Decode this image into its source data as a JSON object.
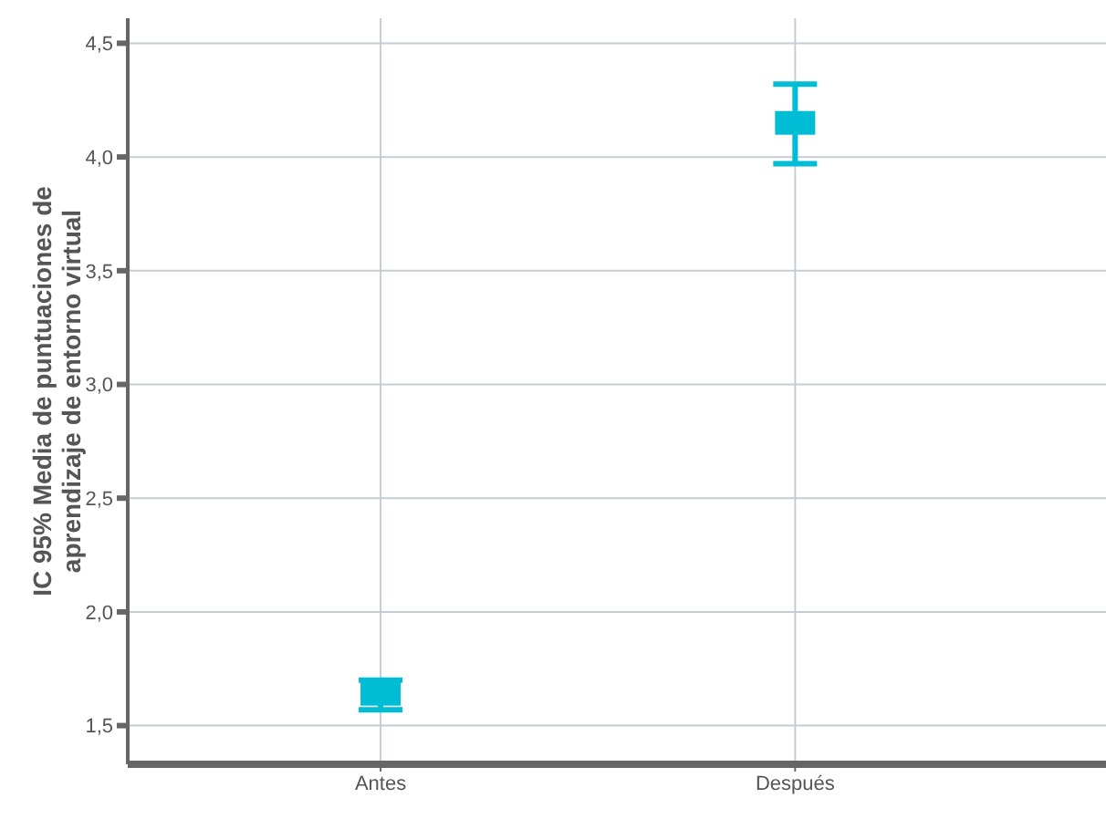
{
  "chart_data": {
    "type": "scatter",
    "ylabel": "IC 95% Media de puntuaciones de aprendizaje de entorno virtual",
    "categories": [
      "Antes",
      "Después"
    ],
    "values": [
      1.64,
      4.15
    ],
    "errors": [
      [
        1.57,
        1.7
      ],
      [
        3.97,
        4.32
      ]
    ],
    "color": "#00bcd4",
    "marker": "square",
    "ylim": [
      1.33,
      4.61
    ],
    "yticks": [
      {
        "value": 1.5,
        "label": "1,5"
      },
      {
        "value": 2,
        "label": "2,0"
      },
      {
        "value": 2.5,
        "label": "2,5"
      },
      {
        "value": 3,
        "label": "3,0"
      },
      {
        "value": 3.5,
        "label": "3,5"
      },
      {
        "value": 4,
        "label": "4,0"
      },
      {
        "value": 4.5,
        "label": "4,5"
      }
    ],
    "grid": true
  }
}
